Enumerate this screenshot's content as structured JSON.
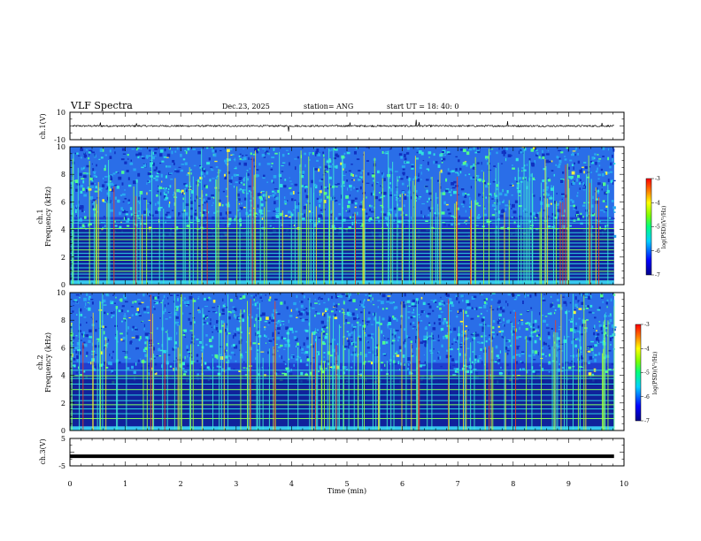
{
  "header": {
    "title": "VLF Spectra",
    "date": "Dec.23, 2025",
    "station": "station= ANG",
    "start": "start  UT =   18: 40: 0"
  },
  "chart_data": [
    {
      "type": "line",
      "name": "ch1-waveform",
      "ylabel": "ch.1(V)",
      "ylim": [
        -10,
        10
      ],
      "ytick_labels": [
        "10",
        "-10"
      ],
      "baseline": 0,
      "noise_amplitude": 1.2,
      "spikes": [
        [
          0.55,
          2.5
        ],
        [
          1.2,
          2.0
        ],
        [
          3.95,
          -4.0
        ],
        [
          5.05,
          2.6
        ],
        [
          6.25,
          4.5
        ],
        [
          6.3,
          2.8
        ],
        [
          7.9,
          3.5
        ],
        [
          9.6,
          2.2
        ]
      ]
    },
    {
      "type": "heatmap",
      "name": "ch1-spectrogram",
      "ylabel": "Frequency (kHz)",
      "channel_label": "ch.1",
      "ylim": [
        0,
        10
      ],
      "yticks": [
        0,
        2,
        4,
        6,
        8,
        10
      ],
      "colorbar": {
        "label": "log(PSD)(V²/Hz)",
        "range": [
          -7,
          -3
        ],
        "ticks": [
          "-3",
          "-4",
          "-5",
          "-6",
          "-7"
        ]
      },
      "hum_lines_khz": [
        0.3,
        0.55,
        0.8,
        1.0,
        1.25,
        1.55,
        1.8,
        2.05,
        2.3,
        2.55,
        2.8,
        3.05,
        3.3,
        3.55,
        3.8,
        4.1,
        4.5,
        4.7
      ]
    },
    {
      "type": "heatmap",
      "name": "ch2-spectrogram",
      "ylabel": "Frequency (kHz)",
      "channel_label": "ch.2",
      "ylim": [
        0,
        10
      ],
      "yticks": [
        0,
        2,
        4,
        6,
        8,
        10
      ],
      "colorbar": {
        "label": "log(PSD)(V²/Hz)",
        "range": [
          -7,
          -3
        ],
        "ticks": [
          "-3",
          "-4",
          "-5",
          "-6",
          "-7"
        ]
      },
      "hum_lines_khz": [
        0.9,
        1.25,
        1.6,
        1.9,
        2.2,
        2.6,
        3.0,
        3.4,
        3.8,
        4.0,
        4.4
      ]
    },
    {
      "type": "line",
      "name": "ch3-waveform",
      "ylabel": "ch.3(V)",
      "ylim": [
        -5,
        5
      ],
      "ytick_labels": [
        "5",
        "-5"
      ],
      "baseline": -1.5
    }
  ],
  "xaxis": {
    "label": "Time (min)",
    "range": [
      0,
      10
    ],
    "data_end": 9.82,
    "ticks": [
      "0",
      "1",
      "2",
      "3",
      "4",
      "5",
      "6",
      "7",
      "8",
      "9",
      "10"
    ]
  }
}
